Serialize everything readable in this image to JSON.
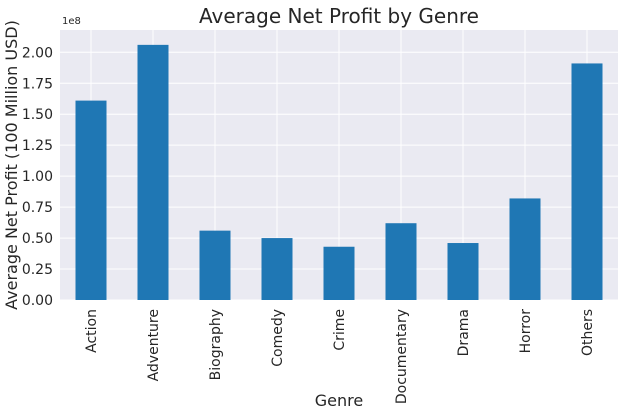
{
  "chart_data": {
    "type": "bar",
    "title": "Average Net Profit by Genre",
    "xlabel": "Genre",
    "ylabel": "Average Net Profit (100 Million USD)",
    "offset_text": "1e8",
    "categories": [
      "Action",
      "Adventure",
      "Biography",
      "Comedy",
      "Crime",
      "Documentary",
      "Drama",
      "Horror",
      "Others"
    ],
    "values": [
      1.61,
      2.06,
      0.56,
      0.5,
      0.43,
      0.62,
      0.46,
      0.82,
      1.91
    ],
    "ylim": [
      0,
      2.18
    ],
    "yticks": [
      "0.00",
      "0.25",
      "0.50",
      "0.75",
      "1.00",
      "1.25",
      "1.50",
      "1.75",
      "2.00"
    ],
    "bar_color": "#1f77b4",
    "grid": true
  },
  "colors": {
    "plot_background": "#eaeaf2",
    "grid": "#ffffff",
    "text": "#262626"
  }
}
